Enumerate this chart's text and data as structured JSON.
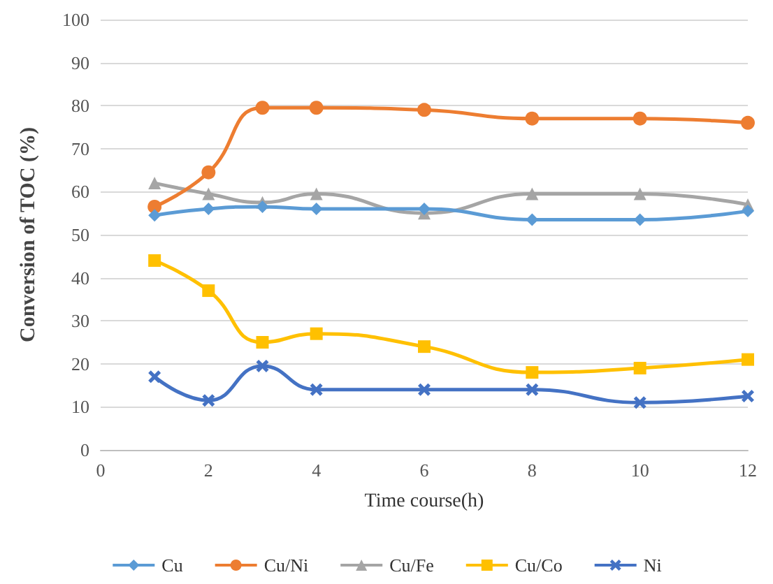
{
  "chart_data": {
    "type": "line",
    "xlabel": "Time course(h)",
    "ylabel": "Conversion of TOC (%)",
    "x": [
      1,
      2,
      3,
      4,
      6,
      8,
      10,
      12
    ],
    "series": [
      {
        "name": "Cu",
        "color": "#5b9bd5",
        "marker": "diamond",
        "values": [
          54.5,
          56,
          56.5,
          56,
          56,
          53.5,
          53.5,
          55.5
        ]
      },
      {
        "name": "Cu/Ni",
        "color": "#ed7d31",
        "marker": "circle",
        "values": [
          56.5,
          64.5,
          79.5,
          79.5,
          79,
          77,
          77,
          76
        ]
      },
      {
        "name": "Cu/Fe",
        "color": "#a5a5a5",
        "marker": "triangle",
        "values": [
          62,
          59.5,
          57.5,
          59.5,
          55,
          59.5,
          59.5,
          57
        ]
      },
      {
        "name": "Cu/Co",
        "color": "#ffc000",
        "marker": "square",
        "values": [
          44,
          37,
          25,
          27,
          24,
          18,
          19,
          21
        ]
      },
      {
        "name": "Ni",
        "color": "#4472c4",
        "marker": "cross",
        "values": [
          17,
          11.5,
          19.5,
          14,
          14,
          14,
          11,
          12.5
        ]
      }
    ],
    "xlim": [
      0,
      12
    ],
    "xticks": [
      0,
      2,
      4,
      6,
      8,
      10,
      12
    ],
    "ylim": [
      0,
      100
    ],
    "yticks": [
      0,
      10,
      20,
      30,
      40,
      50,
      60,
      70,
      80,
      90,
      100
    ],
    "grid": "y",
    "legend": "bottom",
    "line_style": "solid"
  }
}
